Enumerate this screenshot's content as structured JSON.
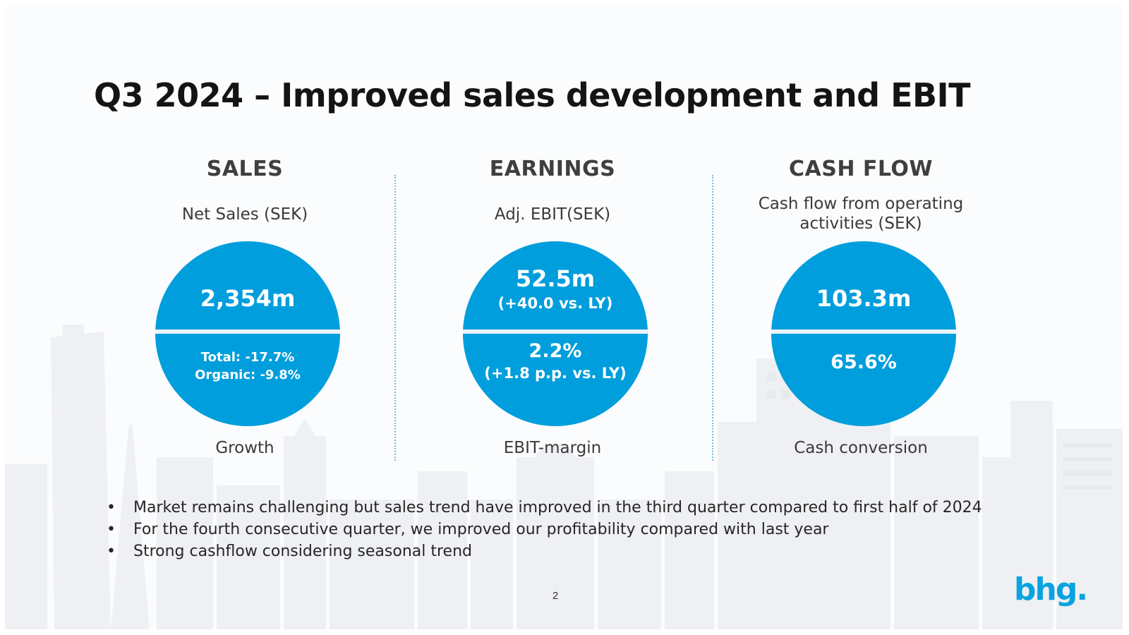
{
  "slide": {
    "title": "Q3 2024 – Improved sales development and EBIT",
    "page_number": "2",
    "logo_text": "bhg.",
    "accent_color": "#009edc"
  },
  "columns": {
    "sales": {
      "heading": "SALES",
      "subtitle": "Net Sales (SEK)",
      "value": "2,354m",
      "bottom_line1": "Total: -17.7%",
      "bottom_line2": "Organic: -9.8%",
      "caption": "Growth"
    },
    "earnings": {
      "heading": "EARNINGS",
      "subtitle": "Adj. EBIT(SEK)",
      "value": "52.5m",
      "value_note": "(+40.0 vs. LY)",
      "bottom_value": "2.2%",
      "bottom_note": "(+1.8 p.p. vs. LY)",
      "caption": "EBIT-margin"
    },
    "cashflow": {
      "heading": "CASH FLOW",
      "subtitle_line1": "Cash flow from operating",
      "subtitle_line2": "activities (SEK)",
      "value": "103.3m",
      "bottom_value": "65.6%",
      "caption": "Cash conversion"
    }
  },
  "bullets": [
    "Market remains challenging but sales trend have improved in the third quarter compared to first half of 2024",
    "For the fourth consecutive quarter, we improved our profitability compared with last year",
    "Strong cashflow considering seasonal trend"
  ]
}
